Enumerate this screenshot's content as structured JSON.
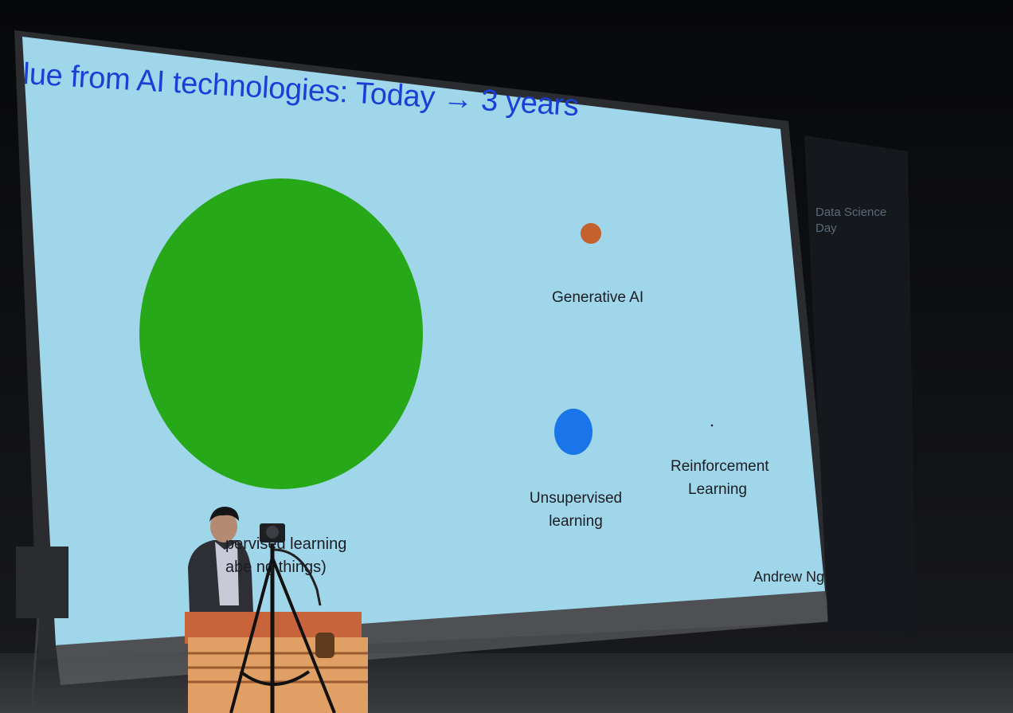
{
  "slide": {
    "title": "lue from AI technologies: Today → 3 years",
    "author": "Andrew Ng",
    "bubbles": [
      {
        "key": "supervised",
        "label_line1": "pervised learning",
        "label_line2": "abe ng things)",
        "color": "#27a818"
      },
      {
        "key": "generative",
        "label": "Generative AI",
        "color": "#c4612c"
      },
      {
        "key": "unsupervised",
        "label_line1": "Unsupervised",
        "label_line2": "learning",
        "color": "#1a76e8"
      },
      {
        "key": "reinforcement",
        "label_line1": "Reinforcement",
        "label_line2": "Learning",
        "color": "#1b1d22"
      }
    ],
    "background_color": "#9fd6ea"
  },
  "banner": {
    "line1": "Data Science",
    "line2": "Day"
  },
  "colors": {
    "title_blue": "#1a3fd6",
    "podium": "#d98c53",
    "stage": "#0c0d10"
  }
}
